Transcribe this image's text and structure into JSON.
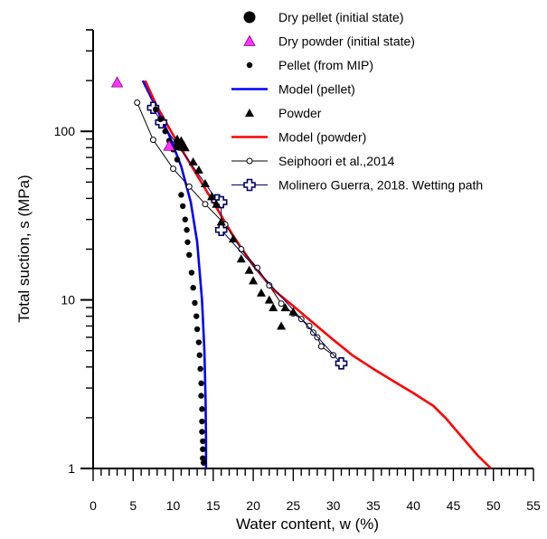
{
  "chart_data": {
    "type": "scatter",
    "xlabel": "Water content, w (%)",
    "ylabel": "Total suction, s (MPa)",
    "xlim": [
      0,
      55
    ],
    "ylim": [
      1,
      400
    ],
    "y_scale": "log",
    "grid": false,
    "legend_position": "top-right",
    "x_ticks": [
      0,
      5,
      10,
      15,
      20,
      25,
      30,
      35,
      40,
      45,
      50,
      55
    ],
    "x_tick_labels": [
      "0",
      "5",
      "10",
      "15",
      "20",
      "25",
      "30",
      "35",
      "40",
      "45",
      "50",
      "55"
    ],
    "y_ticks": [
      1,
      10,
      100
    ],
    "y_tick_labels": [
      "1",
      "10",
      "100"
    ],
    "series": [
      {
        "name": "Dry pellet (initial state)",
        "marker": "circle-large",
        "color": "#000000",
        "points": [
          [
            10.8,
            83
          ]
        ]
      },
      {
        "name": "Dry powder (initial state)",
        "marker": "triangle-magenta",
        "color": "#ff33ff",
        "points": [
          [
            3.0,
            195
          ],
          [
            9.5,
            82
          ]
        ]
      },
      {
        "name": "Pellet (from MIP)",
        "marker": "dot",
        "color": "#000000",
        "points": [
          [
            7.8,
            135
          ],
          [
            8.4,
            118
          ],
          [
            9.0,
            100
          ],
          [
            9.5,
            88
          ],
          [
            10.0,
            78
          ],
          [
            10.5,
            68
          ],
          [
            11.0,
            42
          ],
          [
            11.2,
            36
          ],
          [
            11.5,
            30
          ],
          [
            11.7,
            26
          ],
          [
            11.8,
            22
          ],
          [
            12.0,
            18.5
          ],
          [
            12.3,
            14.5
          ],
          [
            12.5,
            11.8
          ],
          [
            12.7,
            9.6
          ],
          [
            12.9,
            8.0
          ],
          [
            13.0,
            6.7
          ],
          [
            13.2,
            5.6
          ],
          [
            13.3,
            4.7
          ],
          [
            13.4,
            3.9
          ],
          [
            13.5,
            3.2
          ],
          [
            13.5,
            2.7
          ],
          [
            13.6,
            2.25
          ],
          [
            13.6,
            1.9
          ],
          [
            13.6,
            1.65
          ],
          [
            13.7,
            1.45
          ],
          [
            13.7,
            1.3
          ],
          [
            13.7,
            1.15
          ],
          [
            13.8,
            1.08
          ]
        ]
      },
      {
        "name": "Model (pellet)",
        "marker": "line",
        "color": "#0000ff",
        "points": [
          [
            6.2,
            200
          ],
          [
            8.0,
            135
          ],
          [
            9.5,
            95
          ],
          [
            11.0,
            62
          ],
          [
            12.2,
            38
          ],
          [
            13.0,
            22
          ],
          [
            13.6,
            10
          ],
          [
            13.9,
            5
          ],
          [
            14.05,
            2.5
          ],
          [
            14.1,
            1.5
          ],
          [
            14.1,
            1.0
          ]
        ]
      },
      {
        "name": "Powder",
        "marker": "triangle",
        "color": "#000000",
        "points": [
          [
            10.5,
            90
          ],
          [
            11.0,
            88
          ],
          [
            11.5,
            80
          ],
          [
            12.5,
            66
          ],
          [
            13.2,
            59
          ],
          [
            14.0,
            49
          ],
          [
            14.8,
            41
          ],
          [
            15.4,
            37
          ],
          [
            16.0,
            29
          ],
          [
            17.5,
            23
          ],
          [
            18.5,
            17.5
          ],
          [
            19.5,
            15
          ],
          [
            20.0,
            13
          ],
          [
            21.0,
            11
          ],
          [
            22.0,
            10
          ],
          [
            22.5,
            9
          ],
          [
            23.5,
            7
          ],
          [
            24.0,
            9
          ],
          [
            25.0,
            8.5
          ]
        ]
      },
      {
        "name": "Model (powder)",
        "marker": "line",
        "color": "#ff0000",
        "points": [
          [
            6.5,
            200
          ],
          [
            8.0,
            140
          ],
          [
            10.0,
            95
          ],
          [
            12.5,
            60
          ],
          [
            15.0,
            38
          ],
          [
            17.5,
            24
          ],
          [
            20.0,
            16
          ],
          [
            22.5,
            11.5
          ],
          [
            25.0,
            9.2
          ],
          [
            27.5,
            7.3
          ],
          [
            30.0,
            5.8
          ],
          [
            32.5,
            4.65
          ],
          [
            35.0,
            3.9
          ],
          [
            37.5,
            3.3
          ],
          [
            40.0,
            2.8
          ],
          [
            42.5,
            2.35
          ],
          [
            44.0,
            2.0
          ],
          [
            46.0,
            1.55
          ],
          [
            48.0,
            1.2
          ],
          [
            49.7,
            1.0
          ]
        ]
      },
      {
        "name": "Seiphoori et al.,2014",
        "marker": "open-circle-line",
        "color": "#000000",
        "points": [
          [
            5.5,
            148
          ],
          [
            7.5,
            89
          ],
          [
            10.0,
            60
          ],
          [
            12.0,
            47
          ],
          [
            14.0,
            37
          ],
          [
            16.5,
            28
          ],
          [
            18.5,
            20
          ],
          [
            20.5,
            15.5
          ],
          [
            22.0,
            12.2
          ],
          [
            23.5,
            9.5
          ],
          [
            25.0,
            8.3
          ],
          [
            26.0,
            7.7
          ],
          [
            27.0,
            7.0
          ],
          [
            27.5,
            6.4
          ],
          [
            28.0,
            6.0
          ],
          [
            28.5,
            5.3
          ],
          [
            30.0,
            4.7
          ]
        ]
      },
      {
        "name": "Molinero Guerra, 2018. Wetting path",
        "marker": "cross-line",
        "color": "#000066",
        "points": [
          [
            7.5,
            138
          ],
          [
            8.5,
            113
          ],
          [
            15.5,
            39
          ],
          [
            16.0,
            38
          ],
          [
            16.0,
            26
          ],
          [
            31.0,
            4.2
          ]
        ]
      }
    ]
  }
}
